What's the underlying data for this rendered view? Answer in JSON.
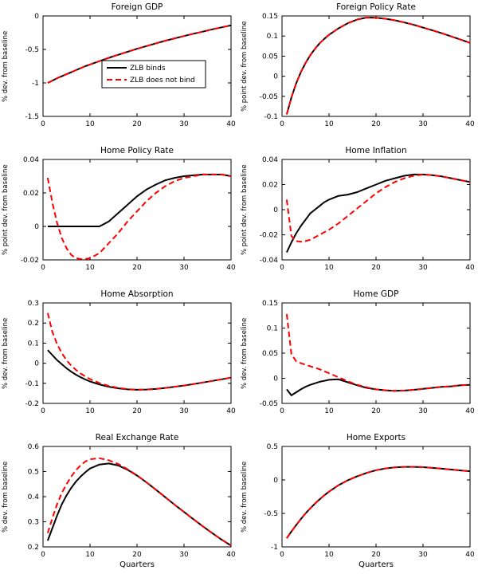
{
  "colors": {
    "background": "#ffffff",
    "axis": "#000000",
    "zlb_binds": "#000000",
    "zlb_does_not_bind": "#ff0000"
  },
  "x_quarters": [
    1,
    2,
    3,
    4,
    5,
    6,
    7,
    8,
    9,
    10,
    12,
    14,
    16,
    18,
    20,
    22,
    24,
    26,
    28,
    30,
    32,
    34,
    36,
    38,
    40
  ],
  "chart_data": [
    {
      "type": "line",
      "title": "Foreign GDP",
      "ylabel": "% dev. from baseline",
      "xlabel": "",
      "xlim": [
        0,
        40
      ],
      "xticks": [
        0,
        10,
        20,
        30,
        40
      ],
      "xtick_labels": [
        "0",
        "10",
        "20",
        "30",
        "40"
      ],
      "ylim": [
        -1.5,
        0
      ],
      "yticks": [
        -1.5,
        -1,
        -0.5,
        0
      ],
      "ytick_labels": [
        "-1.5",
        "-1",
        "-0.5",
        "0"
      ],
      "show_legend": true,
      "series": [
        {
          "name": "ZLB binds",
          "color": "#000000",
          "style": "solid",
          "y": [
            -1.0,
            -0.965,
            -0.93,
            -0.9,
            -0.87,
            -0.84,
            -0.81,
            -0.78,
            -0.75,
            -0.725,
            -0.675,
            -0.625,
            -0.58,
            -0.535,
            -0.49,
            -0.45,
            -0.41,
            -0.37,
            -0.335,
            -0.3,
            -0.265,
            -0.235,
            -0.2,
            -0.17,
            -0.14
          ]
        },
        {
          "name": "ZLB does not bind",
          "color": "#ff0000",
          "style": "dashed",
          "y": [
            -1.0,
            -0.965,
            -0.93,
            -0.9,
            -0.87,
            -0.84,
            -0.81,
            -0.78,
            -0.75,
            -0.725,
            -0.675,
            -0.625,
            -0.58,
            -0.535,
            -0.49,
            -0.45,
            -0.41,
            -0.37,
            -0.335,
            -0.3,
            -0.265,
            -0.235,
            -0.2,
            -0.17,
            -0.14
          ]
        }
      ]
    },
    {
      "type": "line",
      "title": "Foreign Policy Rate",
      "ylabel": "% point dev. from baseline",
      "xlabel": "",
      "xlim": [
        0,
        40
      ],
      "xticks": [
        0,
        10,
        20,
        30,
        40
      ],
      "xtick_labels": [
        "0",
        "10",
        "20",
        "30",
        "40"
      ],
      "ylim": [
        -0.1,
        0.15
      ],
      "yticks": [
        -0.1,
        -0.05,
        0,
        0.05,
        0.1,
        0.15
      ],
      "ytick_labels": [
        "-0.1",
        "-0.05",
        "0",
        "0.05",
        "0.1",
        "0.15"
      ],
      "show_legend": false,
      "series": [
        {
          "name": "ZLB binds",
          "color": "#000000",
          "style": "solid",
          "y": [
            -0.095,
            -0.053,
            -0.018,
            0.01,
            0.033,
            0.052,
            0.068,
            0.082,
            0.093,
            0.103,
            0.119,
            0.132,
            0.141,
            0.146,
            0.1455,
            0.143,
            0.139,
            0.134,
            0.128,
            0.121,
            0.114,
            0.107,
            0.099,
            0.091,
            0.083
          ]
        },
        {
          "name": "ZLB does not bind",
          "color": "#ff0000",
          "style": "dashed",
          "y": [
            -0.095,
            -0.053,
            -0.018,
            0.01,
            0.033,
            0.052,
            0.068,
            0.082,
            0.093,
            0.103,
            0.119,
            0.132,
            0.141,
            0.146,
            0.1455,
            0.143,
            0.139,
            0.134,
            0.128,
            0.121,
            0.114,
            0.107,
            0.099,
            0.091,
            0.083
          ]
        }
      ]
    },
    {
      "type": "line",
      "title": "Home Policy Rate",
      "ylabel": "% point dev. from baseline",
      "xlabel": "",
      "xlim": [
        0,
        40
      ],
      "xticks": [
        0,
        10,
        20,
        30,
        40
      ],
      "xtick_labels": [
        "0",
        "10",
        "20",
        "30",
        "40"
      ],
      "ylim": [
        -0.02,
        0.04
      ],
      "yticks": [
        -0.02,
        0,
        0.02,
        0.04
      ],
      "ytick_labels": [
        "-0.02",
        "0",
        "0.02",
        "0.04"
      ],
      "show_legend": false,
      "series": [
        {
          "name": "ZLB binds",
          "color": "#000000",
          "style": "solid",
          "y": [
            0,
            0,
            0,
            0,
            0,
            0,
            0,
            0,
            0,
            0,
            0,
            0.003,
            0.008,
            0.013,
            0.018,
            0.022,
            0.025,
            0.0275,
            0.029,
            0.03,
            0.0305,
            0.031,
            0.031,
            0.031,
            0.03
          ]
        },
        {
          "name": "ZLB does not bind",
          "color": "#ff0000",
          "style": "dashed",
          "y": [
            0.029,
            0.014,
            0.002,
            -0.007,
            -0.013,
            -0.017,
            -0.019,
            -0.0195,
            -0.0195,
            -0.019,
            -0.016,
            -0.01,
            -0.004,
            0.003,
            0.009,
            0.015,
            0.02,
            0.024,
            0.027,
            0.029,
            0.03,
            0.031,
            0.031,
            0.031,
            0.03
          ]
        }
      ]
    },
    {
      "type": "line",
      "title": "Home Inflation",
      "ylabel": "% point dev. from baseline",
      "xlabel": "",
      "xlim": [
        0,
        40
      ],
      "xticks": [
        0,
        10,
        20,
        30,
        40
      ],
      "xtick_labels": [
        "0",
        "10",
        "20",
        "30",
        "40"
      ],
      "ylim": [
        -0.04,
        0.04
      ],
      "yticks": [
        -0.04,
        -0.02,
        0,
        0.02,
        0.04
      ],
      "ytick_labels": [
        "-0.04",
        "-0.02",
        "0",
        "0.02",
        "0.04"
      ],
      "show_legend": false,
      "series": [
        {
          "name": "ZLB binds",
          "color": "#000000",
          "style": "solid",
          "y": [
            -0.034,
            -0.026,
            -0.019,
            -0.013,
            -0.008,
            -0.003,
            0.0,
            0.003,
            0.006,
            0.008,
            0.011,
            0.012,
            0.014,
            0.017,
            0.02,
            0.023,
            0.025,
            0.027,
            0.028,
            0.028,
            0.0275,
            0.0265,
            0.025,
            0.0235,
            0.022
          ]
        },
        {
          "name": "ZLB does not bind",
          "color": "#ff0000",
          "style": "dashed",
          "y": [
            0.008,
            -0.021,
            -0.025,
            -0.0255,
            -0.025,
            -0.024,
            -0.022,
            -0.02,
            -0.018,
            -0.016,
            -0.011,
            -0.005,
            0.001,
            0.007,
            0.013,
            0.018,
            0.022,
            0.025,
            0.027,
            0.028,
            0.0275,
            0.0265,
            0.025,
            0.0235,
            0.022
          ]
        }
      ]
    },
    {
      "type": "line",
      "title": "Home Absorption",
      "ylabel": "% dev. from baseline",
      "xlabel": "",
      "xlim": [
        0,
        40
      ],
      "xticks": [
        0,
        10,
        20,
        30,
        40
      ],
      "xtick_labels": [
        "0",
        "10",
        "20",
        "30",
        "40"
      ],
      "ylim": [
        -0.2,
        0.3
      ],
      "yticks": [
        -0.2,
        -0.1,
        0,
        0.1,
        0.2,
        0.3
      ],
      "ytick_labels": [
        "-0.2",
        "-0.1",
        "0",
        "0.1",
        "0.2",
        "0.3"
      ],
      "show_legend": false,
      "series": [
        {
          "name": "ZLB binds",
          "color": "#000000",
          "style": "solid",
          "y": [
            0.065,
            0.04,
            0.015,
            -0.005,
            -0.025,
            -0.042,
            -0.057,
            -0.07,
            -0.081,
            -0.091,
            -0.106,
            -0.117,
            -0.125,
            -0.13,
            -0.132,
            -0.131,
            -0.128,
            -0.123,
            -0.117,
            -0.111,
            -0.104,
            -0.096,
            -0.088,
            -0.08,
            -0.072
          ]
        },
        {
          "name": "ZLB does not bind",
          "color": "#ff0000",
          "style": "dashed",
          "y": [
            0.25,
            0.155,
            0.095,
            0.05,
            0.015,
            -0.012,
            -0.033,
            -0.051,
            -0.066,
            -0.079,
            -0.099,
            -0.113,
            -0.123,
            -0.129,
            -0.132,
            -0.131,
            -0.128,
            -0.123,
            -0.117,
            -0.111,
            -0.104,
            -0.096,
            -0.088,
            -0.08,
            -0.072
          ]
        }
      ]
    },
    {
      "type": "line",
      "title": "Home GDP",
      "ylabel": "% dev. from baseline",
      "xlabel": "",
      "xlim": [
        0,
        40
      ],
      "xticks": [
        0,
        10,
        20,
        30,
        40
      ],
      "xtick_labels": [
        "0",
        "10",
        "20",
        "30",
        "40"
      ],
      "ylim": [
        -0.05,
        0.15
      ],
      "yticks": [
        -0.05,
        0,
        0.05,
        0.1,
        0.15
      ],
      "ytick_labels": [
        "-0.05",
        "0",
        "0.05",
        "0.1",
        "0.15"
      ],
      "show_legend": false,
      "series": [
        {
          "name": "ZLB binds",
          "color": "#000000",
          "style": "solid",
          "y": [
            -0.022,
            -0.034,
            -0.028,
            -0.022,
            -0.017,
            -0.013,
            -0.01,
            -0.007,
            -0.005,
            -0.003,
            -0.002,
            -0.008,
            -0.014,
            -0.019,
            -0.022,
            -0.024,
            -0.025,
            -0.0245,
            -0.023,
            -0.021,
            -0.019,
            -0.017,
            -0.016,
            -0.014,
            -0.013
          ]
        },
        {
          "name": "ZLB does not bind",
          "color": "#ff0000",
          "style": "dashed",
          "y": [
            0.128,
            0.048,
            0.034,
            0.03,
            0.027,
            0.024,
            0.021,
            0.018,
            0.014,
            0.01,
            0.002,
            -0.006,
            -0.013,
            -0.018,
            -0.022,
            -0.024,
            -0.025,
            -0.0245,
            -0.023,
            -0.021,
            -0.019,
            -0.017,
            -0.016,
            -0.014,
            -0.013
          ]
        }
      ]
    },
    {
      "type": "line",
      "title": "Real Exchange Rate",
      "ylabel": "% dev. from baseline",
      "xlabel": "Quarters",
      "xlim": [
        0,
        40
      ],
      "xticks": [
        0,
        10,
        20,
        30,
        40
      ],
      "xtick_labels": [
        "0",
        "10",
        "20",
        "30",
        "40"
      ],
      "ylim": [
        0.2,
        0.6
      ],
      "yticks": [
        0.2,
        0.3,
        0.4,
        0.5,
        0.6
      ],
      "ytick_labels": [
        "0.2",
        "0.3",
        "0.4",
        "0.5",
        "0.6"
      ],
      "show_legend": false,
      "series": [
        {
          "name": "ZLB binds",
          "color": "#000000",
          "style": "solid",
          "y": [
            0.225,
            0.275,
            0.325,
            0.37,
            0.405,
            0.435,
            0.46,
            0.48,
            0.497,
            0.512,
            0.528,
            0.532,
            0.524,
            0.507,
            0.484,
            0.457,
            0.428,
            0.398,
            0.368,
            0.339,
            0.31,
            0.282,
            0.255,
            0.229,
            0.205
          ]
        },
        {
          "name": "ZLB does not bind",
          "color": "#ff0000",
          "style": "dashed",
          "y": [
            0.255,
            0.315,
            0.37,
            0.415,
            0.45,
            0.48,
            0.505,
            0.525,
            0.54,
            0.549,
            0.553,
            0.545,
            0.53,
            0.509,
            0.485,
            0.457,
            0.428,
            0.398,
            0.368,
            0.339,
            0.31,
            0.282,
            0.255,
            0.229,
            0.205
          ]
        }
      ]
    },
    {
      "type": "line",
      "title": "Home Exports",
      "ylabel": "% dev. from baseline",
      "xlabel": "Quarters",
      "xlim": [
        0,
        40
      ],
      "xticks": [
        0,
        10,
        20,
        30,
        40
      ],
      "xtick_labels": [
        "0",
        "10",
        "20",
        "30",
        "40"
      ],
      "ylim": [
        -1,
        0.5
      ],
      "yticks": [
        -1,
        -0.5,
        0,
        0.5
      ],
      "ytick_labels": [
        "-1",
        "-0.5",
        "0",
        "0.5"
      ],
      "show_legend": false,
      "series": [
        {
          "name": "ZLB binds",
          "color": "#000000",
          "style": "solid",
          "y": [
            -0.87,
            -0.77,
            -0.675,
            -0.585,
            -0.5,
            -0.425,
            -0.355,
            -0.29,
            -0.23,
            -0.175,
            -0.08,
            -0.005,
            0.055,
            0.105,
            0.145,
            0.172,
            0.188,
            0.195,
            0.195,
            0.19,
            0.18,
            0.168,
            0.155,
            0.142,
            0.13
          ]
        },
        {
          "name": "ZLB does not bind",
          "color": "#ff0000",
          "style": "dashed",
          "y": [
            -0.87,
            -0.77,
            -0.675,
            -0.585,
            -0.5,
            -0.425,
            -0.355,
            -0.29,
            -0.23,
            -0.175,
            -0.08,
            -0.005,
            0.055,
            0.105,
            0.145,
            0.172,
            0.188,
            0.195,
            0.195,
            0.19,
            0.18,
            0.168,
            0.155,
            0.142,
            0.13
          ]
        }
      ]
    }
  ]
}
